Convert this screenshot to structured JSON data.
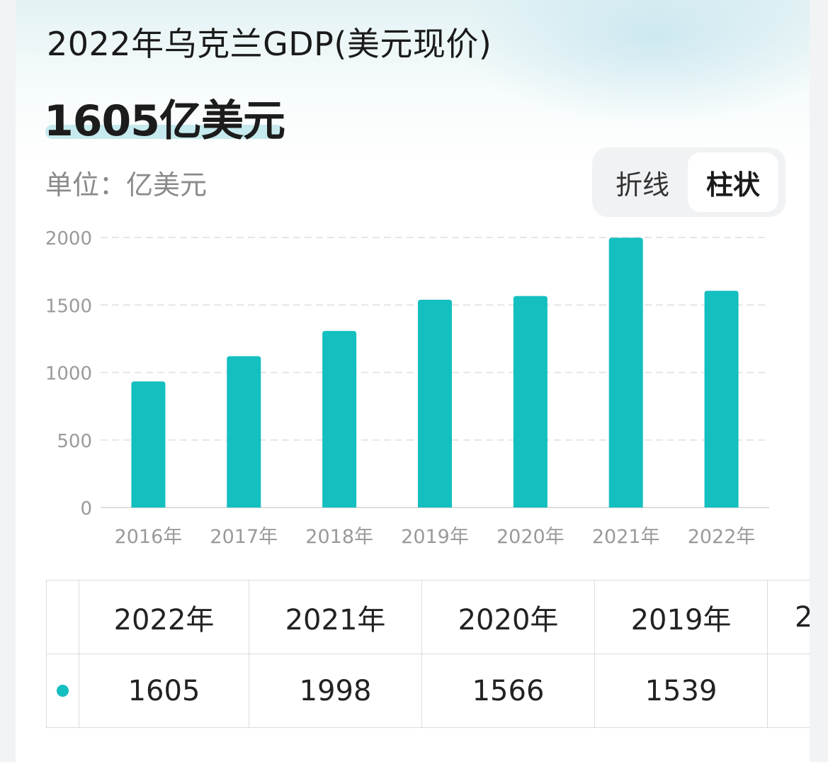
{
  "header": {
    "title": "2022年乌克兰GDP(美元现价)",
    "value": "1605亿美元",
    "unit_label": "单位：亿美元"
  },
  "toggle": {
    "options": [
      "折线",
      "柱状"
    ],
    "active": "柱状"
  },
  "colors": {
    "bar": "#13bfbf",
    "grid": "#e6e6e6",
    "axis_text": "#9a9a9a"
  },
  "chart_data": {
    "type": "bar",
    "categories": [
      "2016年",
      "2017年",
      "2018年",
      "2019年",
      "2020年",
      "2021年",
      "2022年"
    ],
    "values": [
      934,
      1121,
      1308,
      1539,
      1566,
      1998,
      1605
    ],
    "ylim": [
      0,
      2000
    ],
    "yticks": [
      0,
      500,
      1000,
      1500,
      2000
    ],
    "title": "",
    "xlabel": "",
    "ylabel": "",
    "grid": true
  },
  "table": {
    "columns": [
      "2022年",
      "2021年",
      "2020年",
      "2019年",
      "2"
    ],
    "values": [
      "1605",
      "1998",
      "1566",
      "1539",
      ""
    ]
  }
}
